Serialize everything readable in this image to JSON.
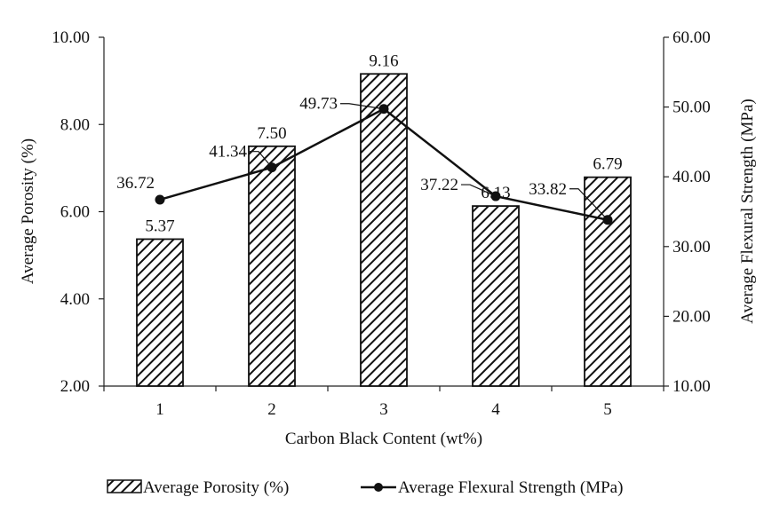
{
  "chart_data": {
    "type": "bar",
    "title": "",
    "xlabel": "Carbon Black Content (wt%)",
    "ylabel": "Average Porosity (%)",
    "y2label": "Average Flexural Strength (MPa)",
    "categories": [
      "1",
      "2",
      "3",
      "4",
      "5"
    ],
    "ylim": [
      2,
      10
    ],
    "y2lim": [
      10,
      60
    ],
    "yticks": [
      "2.00",
      "4.00",
      "6.00",
      "8.00",
      "10.00"
    ],
    "y2ticks": [
      "10.00",
      "20.00",
      "30.00",
      "40.00",
      "50.00",
      "60.00"
    ],
    "grid": false,
    "legend_position": "bottom",
    "series": [
      {
        "name": "Average Porosity (%)",
        "type": "bar",
        "axis": "left",
        "pattern": "diagonal-hatch",
        "values": [
          5.37,
          7.5,
          9.16,
          6.13,
          6.79
        ],
        "labels": [
          "5.37",
          "7.50",
          "9.16",
          "6.13",
          "6.79"
        ]
      },
      {
        "name": "Average Flexural Strength (MPa)",
        "type": "line",
        "axis": "right",
        "marker": "circle",
        "values": [
          36.72,
          41.34,
          49.73,
          37.22,
          33.82
        ],
        "labels": [
          "36.72",
          "41.34",
          "49.73",
          "37.22",
          "33.82"
        ]
      }
    ]
  }
}
